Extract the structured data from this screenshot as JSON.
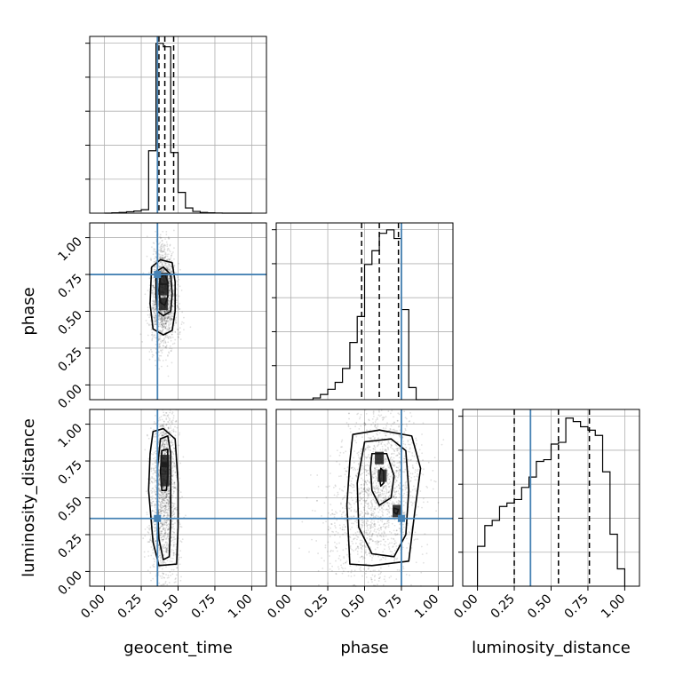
{
  "chart_data": {
    "type": "corner",
    "parameters": [
      "geocent_time",
      "phase",
      "luminosity_distance"
    ],
    "tick_labels": [
      "0.00",
      "0.25",
      "0.50",
      "0.75",
      "1.00"
    ],
    "axis_range": [
      -0.1,
      1.1
    ],
    "grid": true,
    "truth_color": "#4682b4",
    "truths": {
      "geocent_time": 0.36,
      "phase": 0.75,
      "luminosity_distance": 0.36
    },
    "quantiles": {
      "geocent_time": [
        0.37,
        0.41,
        0.47
      ],
      "phase": [
        0.48,
        0.6,
        0.73
      ],
      "luminosity_distance": [
        0.25,
        0.55,
        0.76
      ]
    },
    "histograms": {
      "geocent_time": {
        "edges": [
          0.0,
          0.05,
          0.1,
          0.15,
          0.2,
          0.25,
          0.3,
          0.35,
          0.4,
          0.45,
          0.5,
          0.55,
          0.6,
          0.65,
          0.7,
          0.75,
          0.8,
          0.85,
          0.9,
          0.95,
          1.0
        ],
        "counts": [
          0.0,
          0.002,
          0.004,
          0.008,
          0.012,
          0.02,
          0.36,
          0.98,
          0.96,
          0.35,
          0.12,
          0.03,
          0.01,
          0.004,
          0.002,
          0.001,
          0.0,
          0.0,
          0.0,
          0.0
        ]
      },
      "phase": {
        "edges": [
          0.0,
          0.05,
          0.1,
          0.15,
          0.2,
          0.25,
          0.3,
          0.35,
          0.4,
          0.45,
          0.5,
          0.55,
          0.6,
          0.65,
          0.7,
          0.75,
          0.8,
          0.85,
          0.9,
          0.95,
          1.0
        ],
        "counts": [
          0.0,
          0.0,
          0.0,
          0.01,
          0.03,
          0.06,
          0.1,
          0.18,
          0.33,
          0.48,
          0.78,
          0.86,
          0.96,
          0.98,
          0.93,
          0.52,
          0.07,
          0.0,
          0.0,
          0.0
        ]
      },
      "luminosity_distance": {
        "edges": [
          0.0,
          0.05,
          0.1,
          0.15,
          0.2,
          0.25,
          0.3,
          0.35,
          0.4,
          0.45,
          0.5,
          0.55,
          0.6,
          0.65,
          0.7,
          0.75,
          0.8,
          0.85,
          0.9,
          0.95,
          1.0
        ],
        "counts": [
          0.23,
          0.35,
          0.38,
          0.46,
          0.48,
          0.5,
          0.57,
          0.63,
          0.72,
          0.73,
          0.82,
          0.83,
          0.97,
          0.95,
          0.92,
          0.9,
          0.87,
          0.66,
          0.3,
          0.1
        ]
      }
    },
    "scatter_panels": [
      {
        "x": "geocent_time",
        "y": "phase",
        "centers": [
          {
            "x": 0.4,
            "y": 0.65,
            "sx": 0.03,
            "sy": 0.12,
            "w": 3
          },
          {
            "x": 0.4,
            "y": 0.47,
            "sx": 0.04,
            "sy": 0.1,
            "w": 1
          }
        ],
        "contours": [
          [
            [
              0.35,
              0.77
            ],
            [
              0.4,
              0.8
            ],
            [
              0.45,
              0.75
            ],
            [
              0.46,
              0.62
            ],
            [
              0.45,
              0.5
            ],
            [
              0.4,
              0.47
            ],
            [
              0.36,
              0.5
            ],
            [
              0.35,
              0.6
            ]
          ],
          [
            [
              0.32,
              0.8
            ],
            [
              0.38,
              0.85
            ],
            [
              0.46,
              0.83
            ],
            [
              0.48,
              0.7
            ],
            [
              0.48,
              0.5
            ],
            [
              0.46,
              0.37
            ],
            [
              0.4,
              0.34
            ],
            [
              0.33,
              0.38
            ],
            [
              0.31,
              0.55
            ]
          ],
          [
            [
              0.38,
              0.73
            ],
            [
              0.41,
              0.75
            ],
            [
              0.43,
              0.7
            ],
            [
              0.43,
              0.6
            ],
            [
              0.41,
              0.54
            ],
            [
              0.38,
              0.56
            ],
            [
              0.37,
              0.64
            ]
          ]
        ],
        "dark_cells": [
          [
            0.4,
            0.65
          ],
          [
            0.4,
            0.55
          ],
          [
            0.4,
            0.72
          ]
        ]
      },
      {
        "x": "geocent_time",
        "y": "luminosity_distance",
        "centers": [
          {
            "x": 0.41,
            "y": 0.7,
            "sx": 0.03,
            "sy": 0.15,
            "w": 3
          },
          {
            "x": 0.4,
            "y": 0.3,
            "sx": 0.04,
            "sy": 0.18,
            "w": 2
          }
        ],
        "contours": [
          [
            [
              0.38,
              0.9
            ],
            [
              0.43,
              0.92
            ],
            [
              0.45,
              0.8
            ],
            [
              0.45,
              0.55
            ],
            [
              0.45,
              0.35
            ],
            [
              0.44,
              0.1
            ],
            [
              0.4,
              0.08
            ],
            [
              0.37,
              0.22
            ],
            [
              0.36,
              0.45
            ],
            [
              0.36,
              0.7
            ]
          ],
          [
            [
              0.33,
              0.95
            ],
            [
              0.4,
              0.97
            ],
            [
              0.48,
              0.9
            ],
            [
              0.5,
              0.6
            ],
            [
              0.5,
              0.3
            ],
            [
              0.49,
              0.05
            ],
            [
              0.37,
              0.04
            ],
            [
              0.33,
              0.2
            ],
            [
              0.3,
              0.55
            ],
            [
              0.31,
              0.8
            ]
          ],
          [
            [
              0.39,
              0.82
            ],
            [
              0.43,
              0.83
            ],
            [
              0.43,
              0.65
            ],
            [
              0.42,
              0.55
            ],
            [
              0.39,
              0.55
            ],
            [
              0.38,
              0.68
            ]
          ]
        ],
        "dark_cells": [
          [
            0.41,
            0.75
          ],
          [
            0.41,
            0.7
          ],
          [
            0.41,
            0.62
          ]
        ]
      },
      {
        "x": "phase",
        "y": "luminosity_distance",
        "centers": [
          {
            "x": 0.62,
            "y": 0.62,
            "sx": 0.1,
            "sy": 0.22,
            "w": 4
          },
          {
            "x": 0.5,
            "y": 0.3,
            "sx": 0.12,
            "sy": 0.2,
            "w": 2
          }
        ],
        "contours": [
          [
            [
              0.5,
              0.88
            ],
            [
              0.68,
              0.9
            ],
            [
              0.78,
              0.82
            ],
            [
              0.8,
              0.55
            ],
            [
              0.78,
              0.25
            ],
            [
              0.7,
              0.1
            ],
            [
              0.55,
              0.12
            ],
            [
              0.46,
              0.3
            ],
            [
              0.45,
              0.6
            ]
          ],
          [
            [
              0.42,
              0.93
            ],
            [
              0.6,
              0.96
            ],
            [
              0.82,
              0.92
            ],
            [
              0.88,
              0.7
            ],
            [
              0.84,
              0.4
            ],
            [
              0.8,
              0.07
            ],
            [
              0.55,
              0.04
            ],
            [
              0.4,
              0.05
            ],
            [
              0.38,
              0.45
            ],
            [
              0.4,
              0.75
            ]
          ],
          [
            [
              0.55,
              0.8
            ],
            [
              0.65,
              0.8
            ],
            [
              0.7,
              0.65
            ],
            [
              0.68,
              0.5
            ],
            [
              0.6,
              0.45
            ],
            [
              0.55,
              0.55
            ],
            [
              0.54,
              0.7
            ]
          ],
          [
            [
              0.61,
              0.7
            ],
            [
              0.63,
              0.68
            ],
            [
              0.63,
              0.6
            ],
            [
              0.61,
              0.58
            ],
            [
              0.6,
              0.64
            ]
          ],
          [
            [
              0.7,
              0.43
            ],
            [
              0.73,
              0.42
            ],
            [
              0.72,
              0.39
            ],
            [
              0.7,
              0.4
            ]
          ]
        ],
        "dark_cells": [
          [
            0.6,
            0.77
          ],
          [
            0.72,
            0.41
          ],
          [
            0.62,
            0.65
          ]
        ]
      }
    ]
  }
}
